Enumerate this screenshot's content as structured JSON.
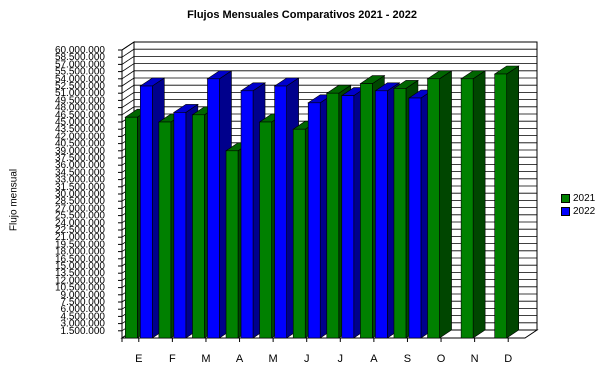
{
  "chart_data": {
    "type": "bar",
    "title": "Flujos Mensuales Comparativos 2021 - 2022",
    "ylabel": "Flujo mensual",
    "xlabel": "",
    "categories": [
      "E",
      "F",
      "M",
      "A",
      "M",
      "J",
      "J",
      "A",
      "S",
      "O",
      "N",
      "D"
    ],
    "yticks": [
      "1.500.000",
      "3.000.000",
      "4.500.000",
      "6.000.000",
      "7.500.000",
      "9.000.000",
      "10.500.000",
      "12.000.000",
      "13.500.000",
      "15.000.000",
      "16.500.000",
      "18.000.000",
      "19.500.000",
      "21.000.000",
      "22.500.000",
      "24.000.000",
      "25.500.000",
      "27.000.000",
      "28.500.000",
      "30.000.000",
      "31.500.000",
      "33.000.000",
      "34.500.000",
      "36.000.000",
      "37.500.000",
      "39.000.000",
      "40.500.000",
      "42.000.000",
      "43.500.000",
      "45.000.000",
      "46.500.000",
      "48.000.000",
      "49.500.000",
      "51.000.000",
      "52.500.000",
      "54.000.000",
      "55.500.000",
      "57.000.000",
      "58.500.000",
      "60.000.000"
    ],
    "ylim": [
      0,
      60000000
    ],
    "series": [
      {
        "name": "2021",
        "color": "#008000",
        "values": [
          46000000,
          45000000,
          46500000,
          39000000,
          45000000,
          43500000,
          51000000,
          53000000,
          52000000,
          54000000,
          54000000,
          55000000
        ]
      },
      {
        "name": "2022",
        "color": "#0000ff",
        "values": [
          52500000,
          47000000,
          54000000,
          51500000,
          52500000,
          49000000,
          50500000,
          51500000,
          50000000,
          null,
          null,
          null
        ]
      }
    ],
    "grid": true,
    "legend_position": "right"
  }
}
